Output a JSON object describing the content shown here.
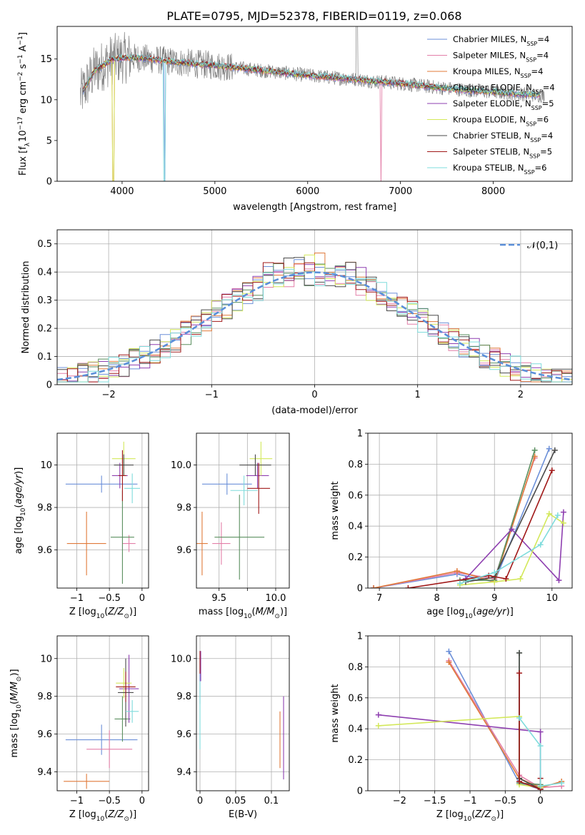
{
  "figure": {
    "title": "PLATE=0795, MJD=52378, FIBERID=0119, z=0.068"
  },
  "colors": [
    "#6b8fd8",
    "#e37fa8",
    "#e07a3a",
    "#5a8f5f",
    "#8e3fb0",
    "#d3e85a",
    "#4a4a4a",
    "#a01818",
    "#7fdcdc"
  ],
  "chart_data": [
    {
      "id": "spectrum",
      "type": "line",
      "xlabel": "wavelength [Angstrom, rest frame]",
      "ylabel": "Flux [f_λ 10^-17 erg cm^-2 s^-1 A^-1]",
      "xlim": [
        3300,
        8850
      ],
      "ylim": [
        0,
        19
      ],
      "xticks": [
        4000,
        5000,
        6000,
        7000,
        8000
      ],
      "yticks": [
        0,
        5,
        10,
        15
      ],
      "legend_position": "upper right",
      "series": [
        {
          "name": "Chabrier MILES, N_SSP=4"
        },
        {
          "name": "Salpeter MILES, N_SSP=4"
        },
        {
          "name": "Kroupa MILES, N_SSP=4"
        },
        {
          "name": "Chabrier ELODIE, N_SSP=4"
        },
        {
          "name": "Salpeter ELODIE, N_SSP=5"
        },
        {
          "name": "Kroupa ELODIE, N_SSP=6"
        },
        {
          "name": "Chabrier STELIB, N_SSP=4"
        },
        {
          "name": "Salpeter STELIB, N_SSP=5"
        },
        {
          "name": "Kroupa STELIB, N_SSP=6"
        }
      ],
      "data_trend": {
        "x": [
          3550,
          3700,
          3900,
          4100,
          4300,
          4600,
          5000,
          5500,
          6000,
          6500,
          7000,
          7400,
          7800,
          8200,
          8550
        ],
        "y": [
          10.5,
          13.5,
          15.0,
          15.2,
          15.0,
          14.6,
          14.2,
          13.6,
          13.0,
          12.5,
          12.0,
          11.5,
          11.1,
          10.8,
          10.5
        ]
      }
    },
    {
      "id": "residuals",
      "type": "bar",
      "xlabel": "(data-model)/error",
      "ylabel": "Normed distribution",
      "xlim": [
        -2.5,
        2.5
      ],
      "ylim": [
        0,
        0.55
      ],
      "xticks": [
        -2,
        -1,
        0,
        1,
        2
      ],
      "yticks": [
        0.0,
        0.1,
        0.2,
        0.3,
        0.4,
        0.5
      ],
      "grid": true,
      "legend": "𝒩(0,1)",
      "legend_position": "upper right"
    },
    {
      "id": "age_vs_Z",
      "type": "scatter",
      "xlabel": "Z [log10(Z/Z⊙)]",
      "ylabel": "age  [log10(age/yr)]",
      "xlim": [
        -1.3,
        0.1
      ],
      "ylim": [
        9.42,
        10.15
      ],
      "xticks": [
        -1.0,
        -0.5,
        0.0
      ],
      "yticks": [
        9.6,
        9.8,
        10.0
      ],
      "grid": true,
      "points": [
        {
          "x": -0.62,
          "y": 9.91,
          "xerr": 0.55,
          "yerr": 0.04,
          "color": 0
        },
        {
          "x": -0.2,
          "y": 9.63,
          "xerr": 0.1,
          "yerr": 0.04,
          "color": 1
        },
        {
          "x": -0.85,
          "y": 9.63,
          "xerr": 0.3,
          "yerr": 0.15,
          "color": 2
        },
        {
          "x": -0.3,
          "y": 9.66,
          "xerr": 0.18,
          "yerr": 0.22,
          "color": 3
        },
        {
          "x": -0.34,
          "y": 9.95,
          "xerr": 0.12,
          "yerr": 0.06,
          "color": 4
        },
        {
          "x": -0.28,
          "y": 10.03,
          "xerr": 0.18,
          "yerr": 0.08,
          "color": 5
        },
        {
          "x": -0.28,
          "y": 10.0,
          "xerr": 0.15,
          "yerr": 0.05,
          "color": 6
        },
        {
          "x": -0.3,
          "y": 9.95,
          "xerr": 0.06,
          "yerr": 0.12,
          "color": 7
        },
        {
          "x": -0.15,
          "y": 9.89,
          "xerr": 0.12,
          "yerr": 0.07,
          "color": 8
        }
      ]
    },
    {
      "id": "age_vs_mass",
      "type": "scatter",
      "xlabel": "mass [log10(M/M⊙)]",
      "ylabel": "",
      "xlim": [
        9.3,
        10.12
      ],
      "ylim": [
        9.42,
        10.15
      ],
      "xticks": [
        9.5,
        9.75,
        10.0
      ],
      "ytick_labels": [
        "9.6",
        "9.8",
        "10.0"
      ],
      "xtick_labels": [
        "9.5",
        "",
        "10.0"
      ],
      "grid": true,
      "points": [
        {
          "x": 9.57,
          "y": 9.91,
          "xerr": 0.22,
          "yerr": 0.05,
          "color": 0
        },
        {
          "x": 9.52,
          "y": 9.63,
          "xerr": 0.08,
          "yerr": 0.1,
          "color": 1
        },
        {
          "x": 9.35,
          "y": 9.63,
          "xerr": 0.05,
          "yerr": 0.15,
          "color": 2
        },
        {
          "x": 9.68,
          "y": 9.66,
          "xerr": 0.22,
          "yerr": 0.2,
          "color": 3
        },
        {
          "x": 9.84,
          "y": 9.95,
          "xerr": 0.1,
          "yerr": 0.06,
          "color": 4
        },
        {
          "x": 9.87,
          "y": 10.03,
          "xerr": 0.1,
          "yerr": 0.08,
          "color": 5
        },
        {
          "x": 9.82,
          "y": 10.0,
          "xerr": 0.14,
          "yerr": 0.05,
          "color": 6
        },
        {
          "x": 9.85,
          "y": 9.89,
          "xerr": 0.1,
          "yerr": 0.12,
          "color": 7
        },
        {
          "x": 9.72,
          "y": 9.88,
          "xerr": 0.12,
          "yerr": 0.07,
          "color": 8
        }
      ]
    },
    {
      "id": "weight_vs_age",
      "type": "line",
      "xlabel": "age  [log10(age/yr)]",
      "ylabel": "mass weight",
      "xlim": [
        6.8,
        10.35
      ],
      "ylim": [
        0,
        1.0
      ],
      "xticks": [
        7,
        8,
        9,
        10
      ],
      "yticks": [
        0.0,
        0.2,
        0.4,
        0.6,
        0.8,
        1.0
      ],
      "grid": true,
      "series": [
        {
          "color": 0,
          "x": [
            6.9,
            8.35,
            9.0,
            9.95
          ],
          "y": [
            0.0,
            0.09,
            0.04,
            0.9
          ]
        },
        {
          "color": 1,
          "x": [
            6.9,
            8.35,
            9.0,
            9.7
          ],
          "y": [
            0.0,
            0.1,
            0.06,
            0.84
          ]
        },
        {
          "color": 2,
          "x": [
            6.9,
            8.35,
            9.0,
            9.7
          ],
          "y": [
            0.0,
            0.11,
            0.04,
            0.85
          ]
        },
        {
          "color": 3,
          "x": [
            8.4,
            9.0,
            9.7
          ],
          "y": [
            0.05,
            0.05,
            0.89
          ]
        },
        {
          "color": 4,
          "x": [
            8.5,
            9.3,
            10.12,
            10.2
          ],
          "y": [
            0.06,
            0.38,
            0.05,
            0.49
          ]
        },
        {
          "color": 5,
          "x": [
            8.4,
            9.0,
            9.45,
            9.95,
            10.2
          ],
          "y": [
            0.02,
            0.04,
            0.06,
            0.48,
            0.42
          ]
        },
        {
          "color": 6,
          "x": [
            8.5,
            9.0,
            10.05
          ],
          "y": [
            0.04,
            0.07,
            0.89
          ]
        },
        {
          "color": 7,
          "x": [
            7.5,
            8.9,
            9.2,
            10.0
          ],
          "y": [
            0.0,
            0.08,
            0.06,
            0.76
          ]
        },
        {
          "color": 8,
          "x": [
            8.4,
            9.0,
            9.8,
            10.1
          ],
          "y": [
            0.03,
            0.1,
            0.28,
            0.47
          ]
        }
      ]
    },
    {
      "id": "mass_vs_Z",
      "type": "scatter",
      "xlabel": "Z [log10(Z/Z⊙)]",
      "ylabel": "mass [log10(M/M⊙)]",
      "xlim": [
        -1.3,
        0.1
      ],
      "ylim": [
        9.3,
        10.12
      ],
      "xticks": [
        -1.0,
        -0.5,
        0.0
      ],
      "yticks": [
        9.4,
        9.6,
        9.8,
        10.0
      ],
      "grid": true,
      "points": [
        {
          "x": -0.62,
          "y": 9.57,
          "xerr": 0.55,
          "yerr": 0.08,
          "color": 0
        },
        {
          "x": -0.5,
          "y": 9.52,
          "xerr": 0.35,
          "yerr": 0.1,
          "color": 1
        },
        {
          "x": -0.85,
          "y": 9.35,
          "xerr": 0.35,
          "yerr": 0.04,
          "color": 2
        },
        {
          "x": -0.3,
          "y": 9.68,
          "xerr": 0.12,
          "yerr": 0.12,
          "color": 3
        },
        {
          "x": -0.2,
          "y": 9.84,
          "xerr": 0.15,
          "yerr": 0.18,
          "color": 4
        },
        {
          "x": -0.28,
          "y": 9.87,
          "xerr": 0.12,
          "yerr": 0.08,
          "color": 5
        },
        {
          "x": -0.25,
          "y": 9.82,
          "xerr": 0.12,
          "yerr": 0.18,
          "color": 6
        },
        {
          "x": -0.25,
          "y": 9.85,
          "xerr": 0.15,
          "yerr": 0.08,
          "color": 7
        },
        {
          "x": -0.15,
          "y": 9.72,
          "xerr": 0.1,
          "yerr": 0.06,
          "color": 8
        }
      ]
    },
    {
      "id": "mass_vs_ebv",
      "type": "scatter",
      "xlabel": "E(B-V)",
      "ylabel": "",
      "xlim": [
        -0.005,
        0.125
      ],
      "ylim": [
        9.3,
        10.12
      ],
      "xticks": [
        0.0,
        0.05,
        0.1
      ],
      "ytick_labels": [
        "9.4",
        "9.6",
        "9.8",
        "10.0"
      ],
      "grid": true,
      "points": [
        {
          "x": 0.0,
          "y": 9.88,
          "xerr": 0.0,
          "yerr": 0.12,
          "color": 0
        },
        {
          "x": 0.001,
          "y": 9.96,
          "xerr": 0.0,
          "yerr": 0.08,
          "color": 4
        },
        {
          "x": 0.0,
          "y": 9.7,
          "xerr": 0.0,
          "yerr": 0.18,
          "color": 8
        },
        {
          "x": 0.0,
          "y": 9.98,
          "xerr": 0.0,
          "yerr": 0.06,
          "color": 7
        },
        {
          "x": 0.112,
          "y": 9.57,
          "xerr": 0.0,
          "yerr": 0.15,
          "color": 2
        },
        {
          "x": 0.117,
          "y": 9.58,
          "xerr": 0.0,
          "yerr": 0.22,
          "color": 4
        }
      ]
    },
    {
      "id": "weight_vs_Z",
      "type": "line",
      "xlabel": "Z [log10(Z/Z⊙)]",
      "ylabel": "mass weight",
      "xlim": [
        -2.45,
        0.45
      ],
      "ylim": [
        0,
        1.0
      ],
      "xticks": [
        -2.0,
        -1.5,
        -1.0,
        -0.5,
        0.0
      ],
      "yticks": [
        0.0,
        0.2,
        0.4,
        0.6,
        0.8,
        1.0
      ],
      "grid": true,
      "series": [
        {
          "color": 0,
          "x": [
            -1.3,
            -0.3,
            0.0
          ],
          "y": [
            0.9,
            0.05,
            0.01
          ]
        },
        {
          "color": 1,
          "x": [
            -1.3,
            -0.3,
            0.0,
            0.3
          ],
          "y": [
            0.84,
            0.1,
            0.02,
            0.03
          ]
        },
        {
          "color": 2,
          "x": [
            -1.3,
            -0.3,
            0.0,
            0.3
          ],
          "y": [
            0.83,
            0.08,
            0.02,
            0.06
          ]
        },
        {
          "color": 3,
          "x": [
            -0.3,
            -0.3,
            0.0
          ],
          "y": [
            0.89,
            0.05,
            0.04
          ]
        },
        {
          "color": 4,
          "x": [
            -2.3,
            0.0,
            0.0
          ],
          "y": [
            0.49,
            0.38,
            0.01
          ]
        },
        {
          "color": 5,
          "x": [
            -2.3,
            -0.3,
            -0.3,
            0.0
          ],
          "y": [
            0.42,
            0.48,
            0.04,
            0.02
          ]
        },
        {
          "color": 6,
          "x": [
            -0.3,
            -0.3,
            0.0
          ],
          "y": [
            0.89,
            0.08,
            0.01
          ]
        },
        {
          "color": 7,
          "x": [
            -0.3,
            -0.3,
            0.0,
            0.0
          ],
          "y": [
            0.76,
            0.06,
            0.01,
            0.08
          ]
        },
        {
          "color": 8,
          "x": [
            -0.3,
            0.0,
            0.0,
            0.3
          ],
          "y": [
            0.47,
            0.29,
            0.03,
            0.05
          ]
        }
      ]
    }
  ]
}
